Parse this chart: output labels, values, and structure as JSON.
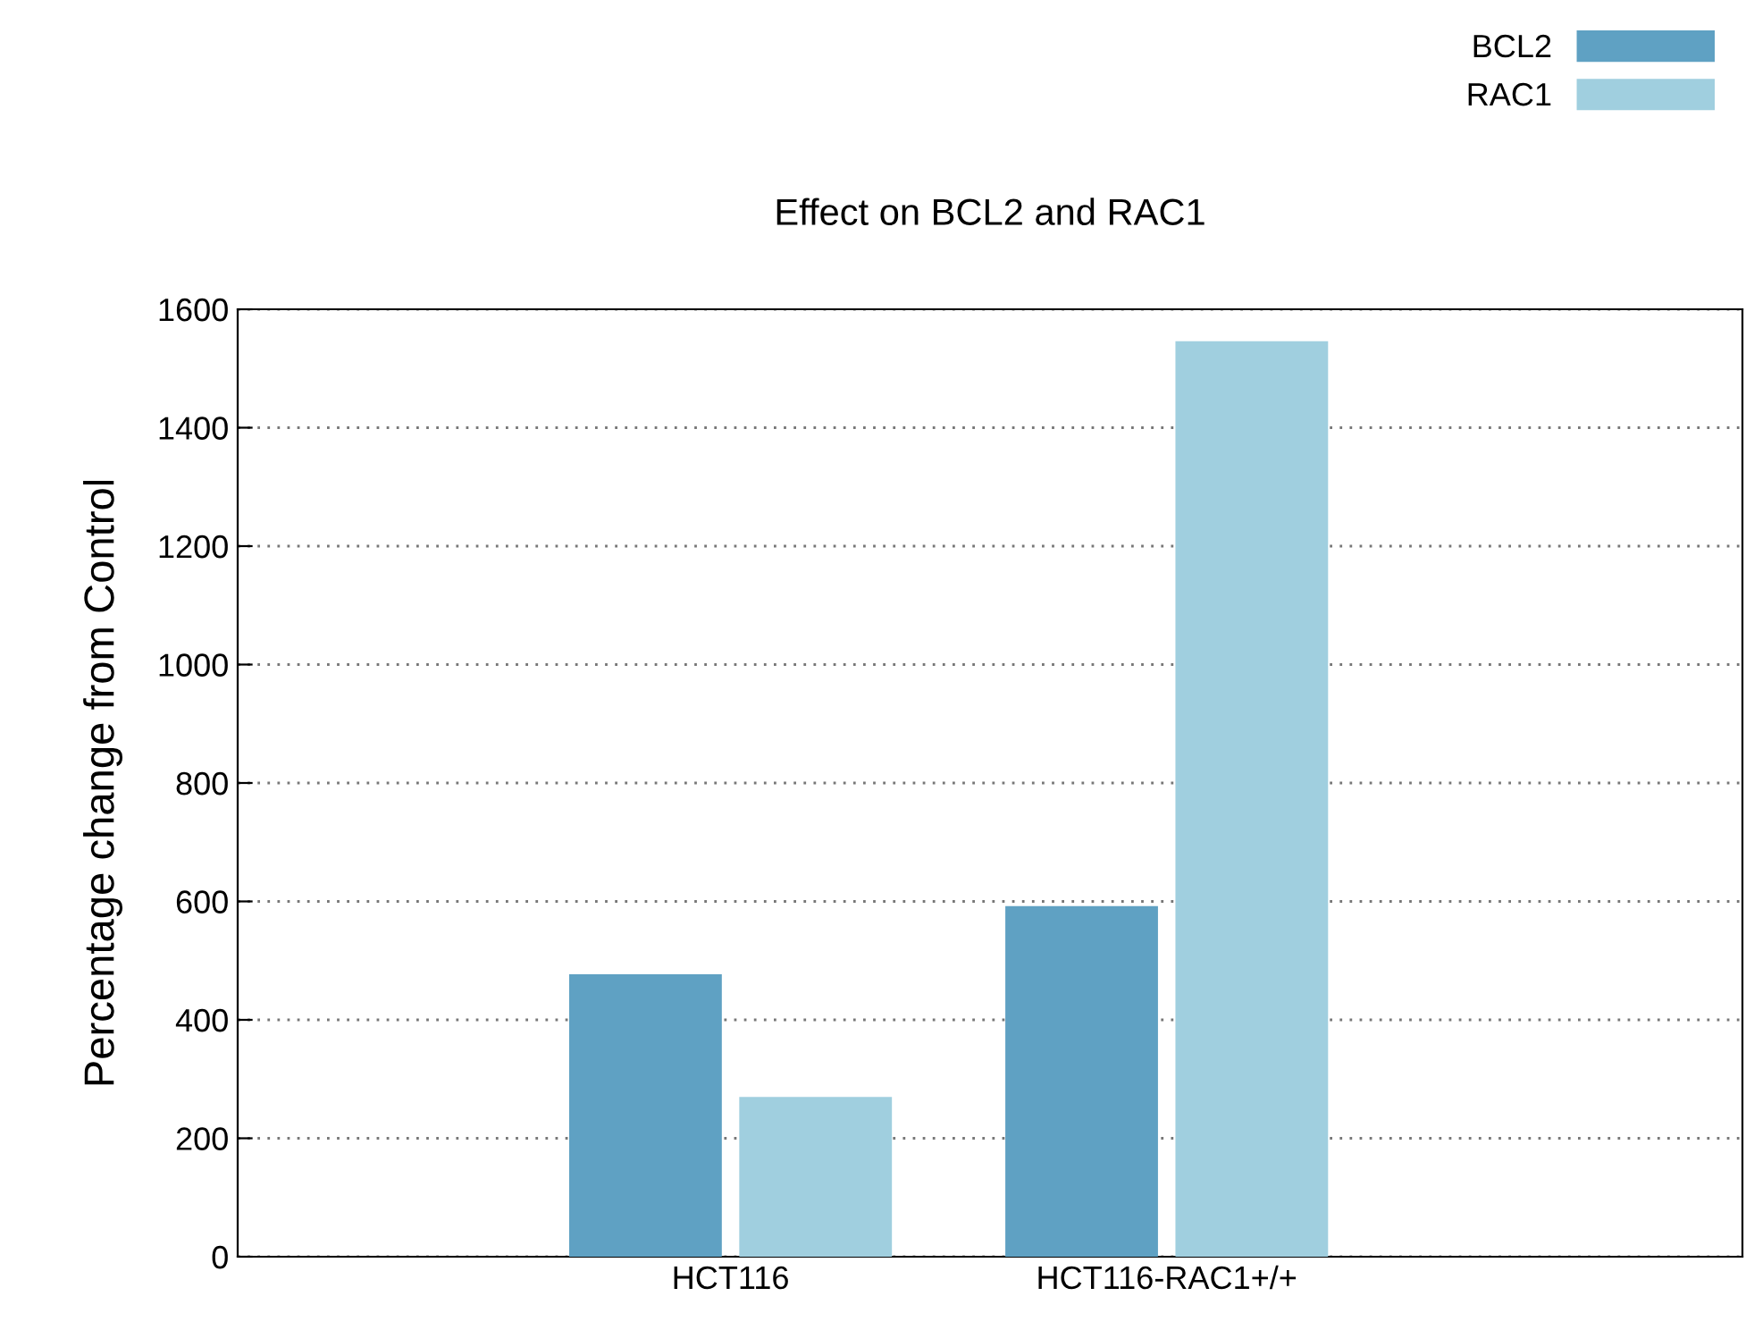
{
  "chart_data": {
    "type": "bar",
    "title": "Effect on BCL2 and RAC1",
    "ylabel": "Percentage change from Control",
    "categories": [
      "HCT116",
      "HCT116-RAC1+/+"
    ],
    "series": [
      {
        "name": "BCL2",
        "color": "#5fa1c3",
        "values": [
          477,
          592
        ]
      },
      {
        "name": "RAC1",
        "color": "#a0cfdf",
        "values": [
          270,
          1546
        ]
      }
    ],
    "ylim": [
      0,
      1600
    ],
    "yticks": [
      0,
      200,
      400,
      600,
      800,
      1000,
      1200,
      1400,
      1600
    ],
    "grid": "y",
    "legend": "top right"
  }
}
